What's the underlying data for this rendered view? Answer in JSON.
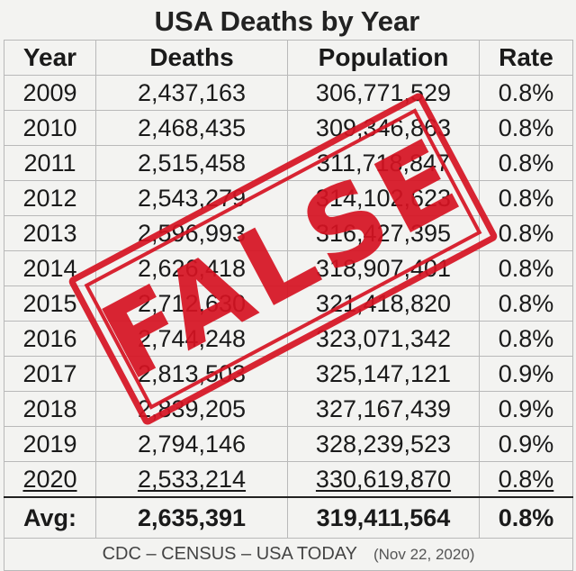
{
  "title": "USA Deaths by Year",
  "columns": [
    "Year",
    "Deaths",
    "Population",
    "Rate"
  ],
  "rows": [
    [
      "2009",
      "2,437,163",
      "306,771,529",
      "0.8%"
    ],
    [
      "2010",
      "2,468,435",
      "309,346,863",
      "0.8%"
    ],
    [
      "2011",
      "2,515,458",
      "311,718,847",
      "0.8%"
    ],
    [
      "2012",
      "2,543,279",
      "314,102,623",
      "0.8%"
    ],
    [
      "2013",
      "2,596,993",
      "316,427,395",
      "0.8%"
    ],
    [
      "2014",
      "2,626,418",
      "318,907,401",
      "0.8%"
    ],
    [
      "2015",
      "2,712,630",
      "321,418,820",
      "0.8%"
    ],
    [
      "2016",
      "2,744,248",
      "323,071,342",
      "0.8%"
    ],
    [
      "2017",
      "2,813,503",
      "325,147,121",
      "0.9%"
    ],
    [
      "2018",
      "2,839,205",
      "327,167,439",
      "0.9%"
    ],
    [
      "2019",
      "2,794,146",
      "328,239,523",
      "0.9%"
    ],
    [
      "2020",
      "2,533,214",
      "330,619,870",
      "0.8%"
    ]
  ],
  "average": {
    "label": "Avg:",
    "deaths": "2,635,391",
    "population": "319,411,564",
    "rate": "0.8%"
  },
  "footer": {
    "source": "CDC – CENSUS – USA TODAY",
    "date": "(Nov 22, 2020)"
  },
  "stamp": {
    "text": "FALSE",
    "color": "#d61222"
  }
}
